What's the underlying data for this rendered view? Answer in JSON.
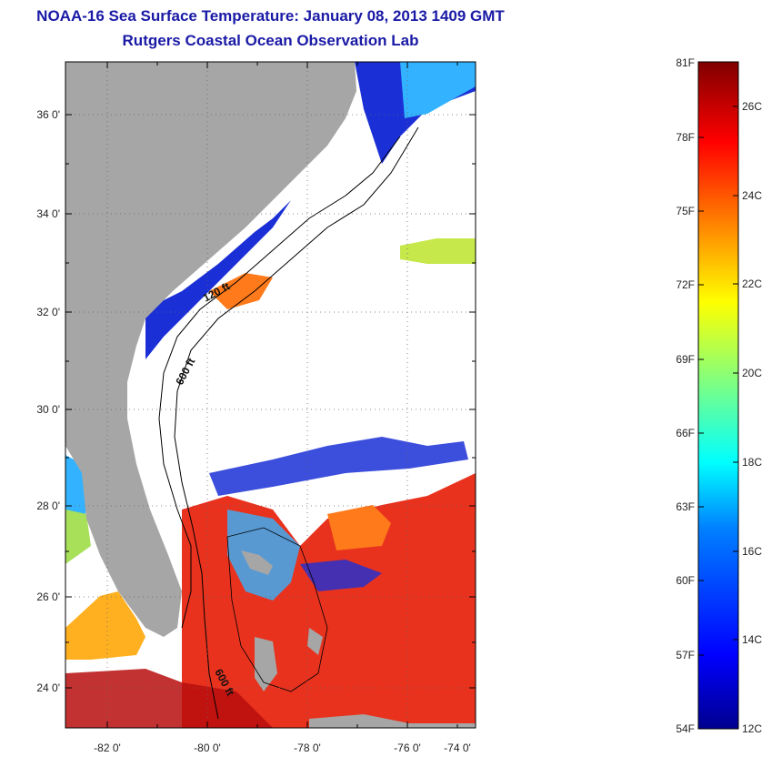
{
  "title": "NOAA-16 Sea Surface Temperature:  January 08, 2013 1409 GMT",
  "subtitle": "Rutgers Coastal Ocean Observation Lab",
  "map": {
    "lat_labels": [
      "36 0'",
      "34 0'",
      "32 0'",
      "30 0'",
      "28 0'",
      "26 0'",
      "24 0'"
    ],
    "lon_labels": [
      "-82 0'",
      "-80 0'",
      "-78 0'",
      "-76 0'",
      "-74 0'"
    ],
    "isobath_labels": [
      "120 ft",
      "600 ft",
      "600 ft"
    ],
    "colors": {
      "land": "#a6a6a6",
      "cloud": "#ffffff",
      "cold": "#1a2fd6",
      "cool": "#33b3ff",
      "mild": "#a8e05a",
      "warm": "#ffb020",
      "hot": "#e8321e",
      "very_hot": "#b80e0e"
    }
  },
  "colorbar": {
    "fahrenheit_labels": [
      "81F",
      "78F",
      "75F",
      "72F",
      "69F",
      "66F",
      "63F",
      "60F",
      "57F",
      "54F"
    ],
    "celsius_labels": [
      "26C",
      "24C",
      "22C",
      "20C",
      "18C",
      "16C",
      "14C",
      "12C"
    ],
    "range_f": [
      54,
      81
    ],
    "range_c": [
      12,
      27
    ]
  }
}
